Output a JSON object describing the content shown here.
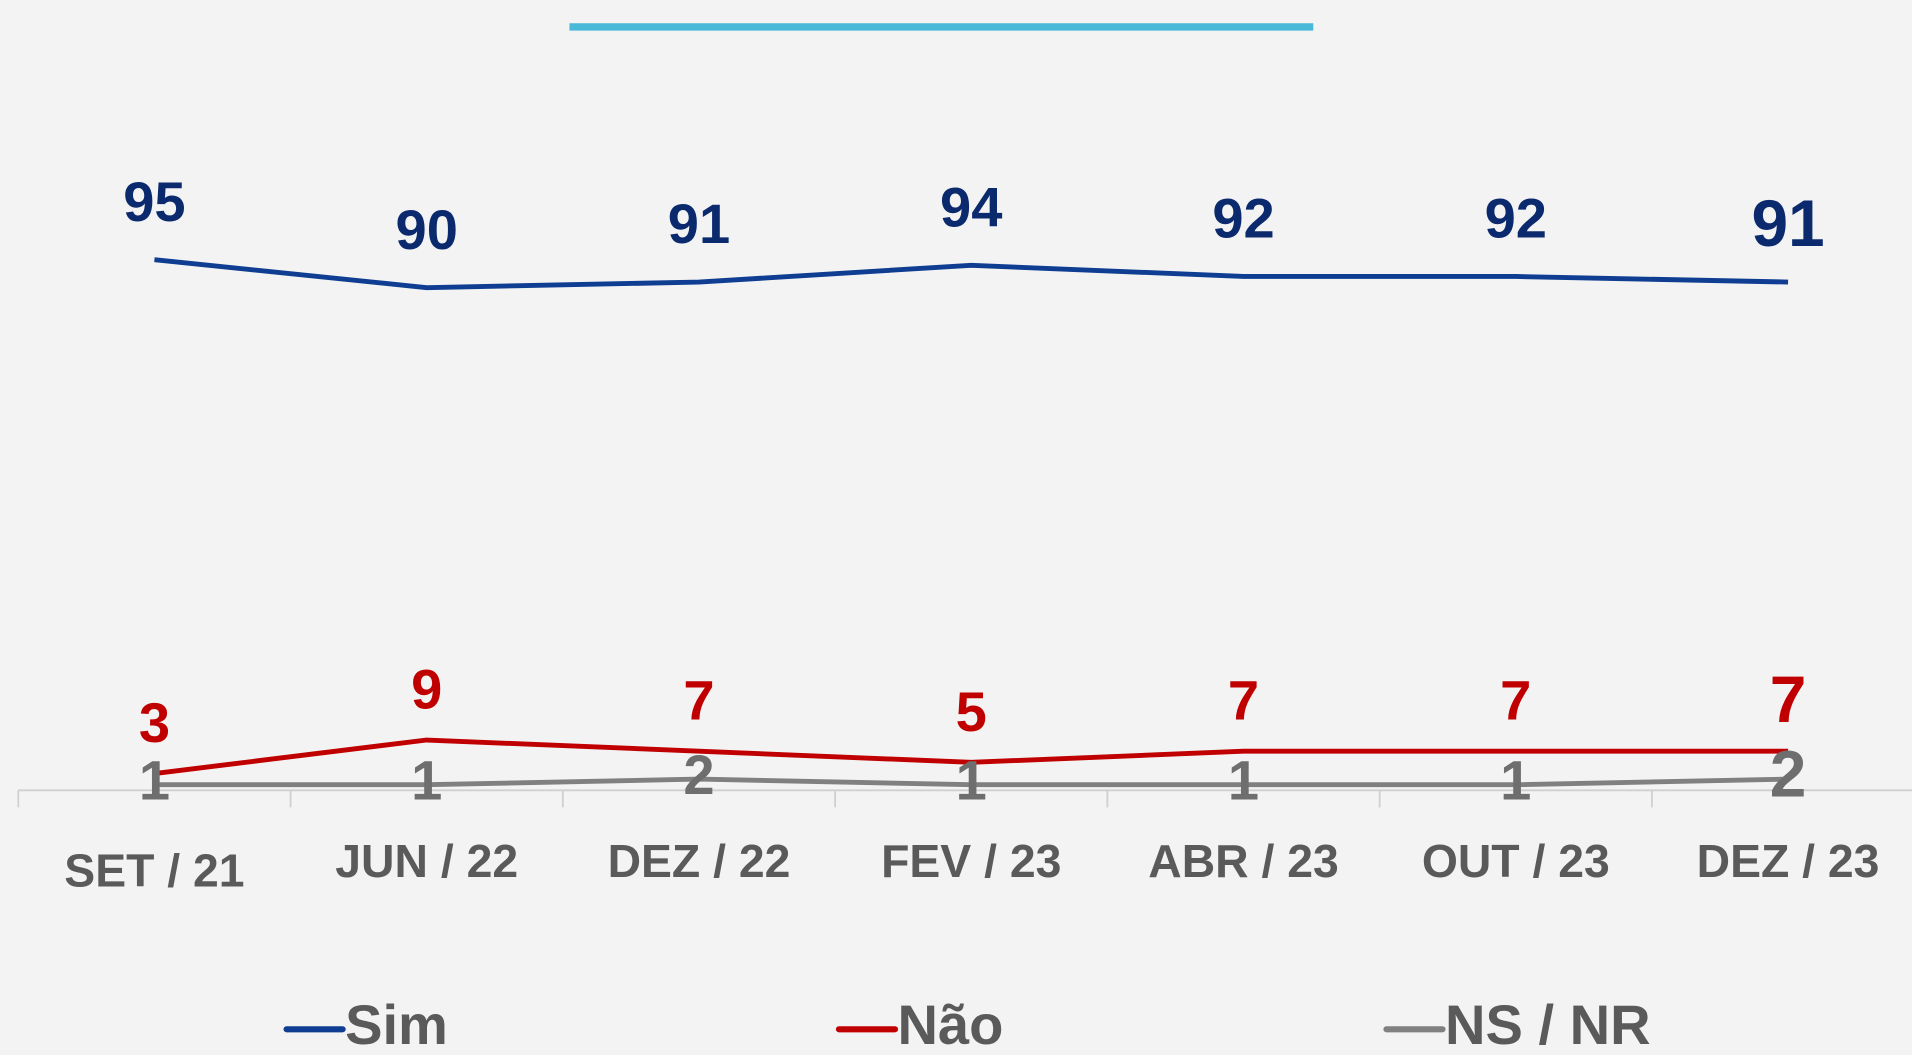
{
  "chart_data": {
    "type": "line",
    "categories": [
      "SET / 21",
      "JUN / 22",
      "DEZ  / 22",
      "FEV / 23",
      "ABR / 23",
      "OUT / 23",
      "DEZ / 23"
    ],
    "series": [
      {
        "name": "Sim",
        "color": "#0e3d91",
        "label_color": "#0b2a6e",
        "values": [
          95,
          90,
          91,
          94,
          92,
          92,
          91
        ]
      },
      {
        "name": "Não",
        "color": "#c00000",
        "label_color": "#c00000",
        "values": [
          3,
          9,
          7,
          5,
          7,
          7,
          7
        ]
      },
      {
        "name": "NS / NR",
        "color": "#808080",
        "label_color": "#6e6e6e",
        "values": [
          1,
          1,
          2,
          1,
          1,
          1,
          2
        ]
      }
    ],
    "ylim": [
      0,
      100
    ]
  }
}
